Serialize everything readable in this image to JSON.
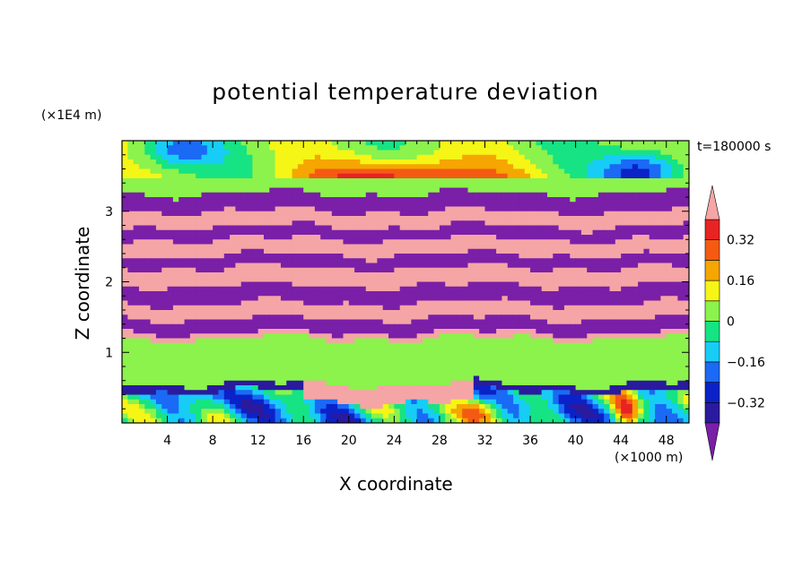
{
  "chart_data": {
    "type": "heatmap",
    "title": "potential temperature deviation",
    "xlabel": "X coordinate",
    "ylabel": "Z coordinate",
    "x_unit_label": "(×1000 m)",
    "y_unit_label": "(×1E4 m)",
    "time_label": "t=180000 s",
    "x_ticks": [
      4,
      8,
      12,
      16,
      20,
      24,
      28,
      32,
      36,
      40,
      44,
      48
    ],
    "x_tick_labels": [
      "4",
      "8",
      "12",
      "16",
      "20",
      "24",
      "28",
      "32",
      "36",
      "40",
      "44",
      "48"
    ],
    "y_ticks": [
      1,
      2,
      3
    ],
    "y_tick_labels": [
      "1",
      "2",
      "3"
    ],
    "xlim": [
      0,
      50
    ],
    "ylim": [
      0,
      4
    ],
    "colorbar": {
      "levels": [
        -0.4,
        -0.32,
        -0.24,
        -0.16,
        -0.08,
        0,
        0.08,
        0.16,
        0.24,
        0.32,
        0.4
      ],
      "colors": [
        "#7a1fa8",
        "#2a1a9e",
        "#0a22c8",
        "#1a6af5",
        "#17cdf5",
        "#16e383",
        "#8cf24c",
        "#f5f516",
        "#f5a600",
        "#f55a12",
        "#e82323",
        "#f5a5a5"
      ],
      "tick_labels": [
        "0.32",
        "0.16",
        "0",
        "−0.16",
        "−0.32"
      ],
      "tick_values": [
        0.32,
        0.16,
        0,
        -0.16,
        -0.32
      ]
    },
    "layers": [
      {
        "z": [
          3.25,
          3.45
        ],
        "value": 0.02
      },
      {
        "z": [
          3.0,
          3.25
        ],
        "value": -0.42
      },
      {
        "z": [
          2.78,
          3.0
        ],
        "value": 0.45
      },
      {
        "z": [
          2.6,
          2.78
        ],
        "value": -0.42
      },
      {
        "z": [
          2.38,
          2.6
        ],
        "value": 0.45
      },
      {
        "z": [
          2.2,
          2.38
        ],
        "value": -0.42
      },
      {
        "z": [
          1.95,
          2.2
        ],
        "value": 0.45
      },
      {
        "z": [
          1.7,
          1.95
        ],
        "value": -0.42
      },
      {
        "z": [
          1.48,
          1.7
        ],
        "value": 0.45
      },
      {
        "z": [
          1.28,
          1.48
        ],
        "value": -0.42
      },
      {
        "z": [
          1.2,
          1.28
        ],
        "value": 0.45
      },
      {
        "z": [
          0.55,
          1.2
        ],
        "value": 0.02
      },
      {
        "z": [
          0.45,
          0.55
        ],
        "value": -0.4
      },
      {
        "z": [
          0.0,
          0.45
        ],
        "value": -0.1
      }
    ]
  }
}
